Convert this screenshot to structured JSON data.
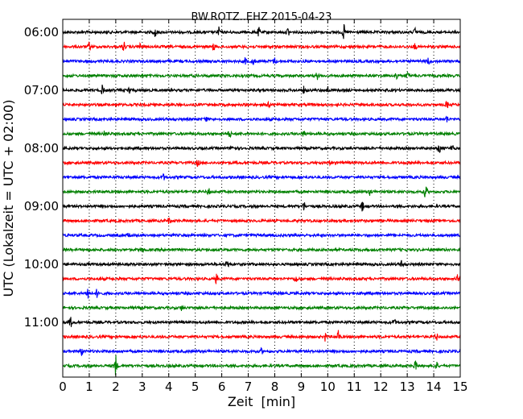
{
  "chart_data": {
    "type": "line",
    "title": "BW.ROTZ..EHZ 2015-04-23",
    "xlabel": "Zeit  [min]",
    "ylabel": "UTC (Lokalzeit = UTC + 02:00)",
    "xlim": [
      0,
      15
    ],
    "x_ticks": [
      "0",
      "1",
      "2",
      "3",
      "4",
      "5",
      "6",
      "7",
      "8",
      "9",
      "10",
      "11",
      "12",
      "13",
      "14",
      "15"
    ],
    "y_tick_labels": [
      "06:00",
      "07:00",
      "08:00",
      "09:00",
      "10:00",
      "11:00"
    ],
    "grid": "vertical dotted",
    "trace_colors": [
      "#000000",
      "#ff0000",
      "#0000ff",
      "#008000"
    ],
    "rows_per_hour": 4,
    "start_hour_utc": "06:00",
    "series": [
      {
        "start": "06:00",
        "events": [
          [
            3.5,
            7
          ],
          [
            5.9,
            6
          ],
          [
            7.4,
            5
          ],
          [
            8.5,
            5
          ],
          [
            10.6,
            9
          ],
          [
            13.3,
            5
          ]
        ]
      },
      {
        "start": "06:15",
        "events": [
          [
            1.0,
            5
          ],
          [
            2.3,
            6
          ],
          [
            2.9,
            4
          ],
          [
            5.7,
            5
          ],
          [
            13.3,
            4
          ]
        ]
      },
      {
        "start": "06:30",
        "events": [
          [
            6.9,
            4
          ],
          [
            7.2,
            4
          ],
          [
            8.0,
            4
          ],
          [
            13.8,
            4
          ]
        ]
      },
      {
        "start": "06:45",
        "events": [
          [
            9.6,
            4
          ],
          [
            12.6,
            5
          ],
          [
            13.0,
            4
          ]
        ]
      },
      {
        "start": "07:00",
        "events": [
          [
            1.5,
            6
          ],
          [
            2.5,
            5
          ],
          [
            9.1,
            4
          ],
          [
            10.0,
            4
          ]
        ]
      },
      {
        "start": "07:15",
        "events": [
          [
            7.8,
            6
          ],
          [
            14.5,
            4
          ]
        ]
      },
      {
        "start": "07:30",
        "events": [
          [
            5.4,
            3
          ],
          [
            14.5,
            4
          ]
        ]
      },
      {
        "start": "07:45",
        "events": [
          [
            1.6,
            4
          ],
          [
            6.3,
            4
          ],
          [
            9.1,
            4
          ]
        ]
      },
      {
        "start": "08:00",
        "events": [
          [
            6.4,
            4
          ],
          [
            14.2,
            6
          ],
          [
            14.7,
            5
          ]
        ]
      },
      {
        "start": "08:15",
        "events": [
          [
            5.1,
            4
          ],
          [
            10.1,
            4
          ]
        ]
      },
      {
        "start": "08:30",
        "events": [
          [
            3.8,
            3
          ]
        ]
      },
      {
        "start": "08:45",
        "events": [
          [
            5.5,
            4
          ],
          [
            11.6,
            4
          ],
          [
            13.7,
            9
          ]
        ]
      },
      {
        "start": "09:00",
        "events": [
          [
            9.1,
            5
          ],
          [
            11.3,
            6
          ]
        ]
      },
      {
        "start": "09:15",
        "events": [
          [
            4.0,
            3
          ]
        ]
      },
      {
        "start": "09:30",
        "events": [
          [
            2.5,
            3
          ]
        ]
      },
      {
        "start": "09:45",
        "events": [
          [
            3.0,
            3
          ]
        ]
      },
      {
        "start": "10:00",
        "events": [
          [
            6.2,
            6
          ],
          [
            12.8,
            5
          ]
        ]
      },
      {
        "start": "10:15",
        "events": [
          [
            5.8,
            6
          ],
          [
            8.8,
            5
          ],
          [
            14.9,
            6
          ]
        ]
      },
      {
        "start": "10:30",
        "events": [
          [
            0.95,
            9
          ],
          [
            1.3,
            5
          ]
        ]
      },
      {
        "start": "10:45",
        "events": [
          [
            4.5,
            3
          ]
        ]
      },
      {
        "start": "11:00",
        "events": [
          [
            0.3,
            6
          ],
          [
            12.5,
            4
          ]
        ]
      },
      {
        "start": "11:15",
        "events": [
          [
            9.9,
            5
          ],
          [
            10.4,
            9
          ],
          [
            14.1,
            4
          ]
        ]
      },
      {
        "start": "11:30",
        "events": [
          [
            0.7,
            6
          ],
          [
            7.5,
            3
          ]
        ]
      },
      {
        "start": "11:45",
        "events": [
          [
            2.0,
            13
          ],
          [
            13.3,
            6
          ],
          [
            14.1,
            5
          ]
        ]
      }
    ]
  }
}
